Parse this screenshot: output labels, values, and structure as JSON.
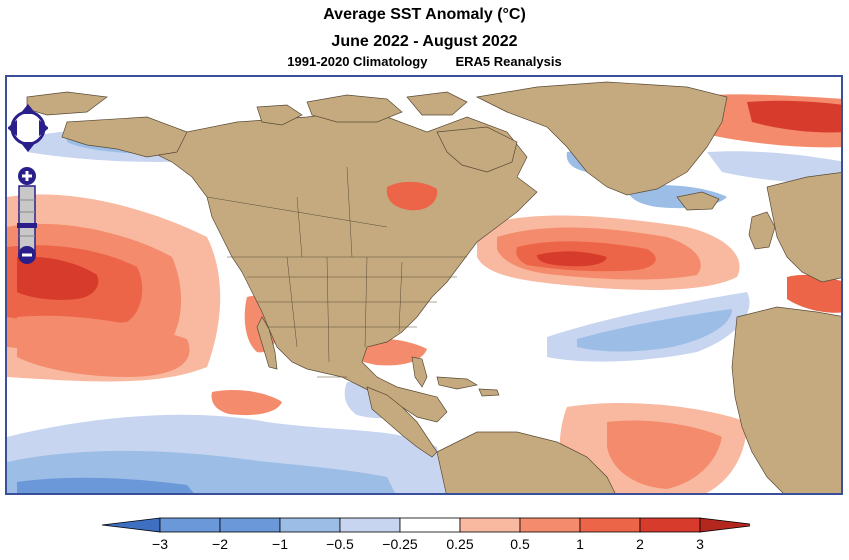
{
  "title": "Average SST Anomaly (°C)",
  "period": "June 2022 - August 2022",
  "climatology": "1991-2020 Climatology",
  "dataset": "ERA5 Reanalysis",
  "colors": {
    "land": "#c4aa7e",
    "border": "#3a4f9a",
    "nav": "#2a1f8a"
  },
  "legend": {
    "ticks": [
      "−3",
      "−2",
      "−1",
      "−0.5",
      "−0.25",
      "0.25",
      "0.5",
      "1",
      "2",
      "3"
    ],
    "colors": [
      "#3f6fc0",
      "#6a98d8",
      "#9bbde6",
      "#c7d5f0",
      "#ffffff",
      "#f8b9a0",
      "#f48b6c",
      "#ec6548",
      "#d73b2b",
      "#b3271f"
    ]
  },
  "controls": {
    "pan": "pan-control",
    "zoom_in": "+",
    "zoom_out": "−"
  }
}
